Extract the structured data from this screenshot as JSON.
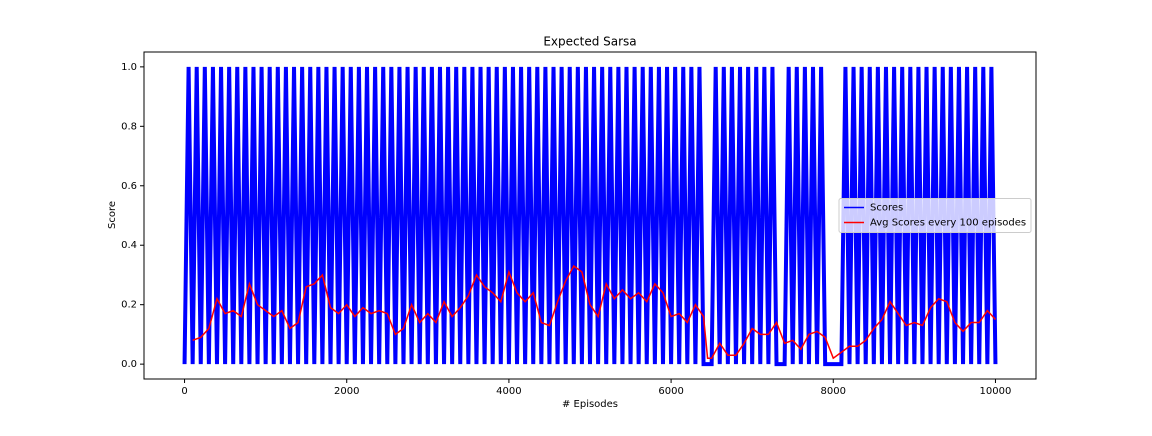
{
  "chart_data": {
    "type": "line",
    "title": "Expected Sarsa",
    "xlabel": "# Episodes",
    "ylabel": "Score",
    "xlim": [
      -500,
      10500
    ],
    "ylim": [
      -0.05,
      1.05
    ],
    "xticks": [
      0,
      2000,
      4000,
      6000,
      8000,
      10000
    ],
    "yticks": [
      {
        "value": 0,
        "label": "0.0"
      },
      0.2,
      0.4,
      0.6,
      0.8,
      {
        "value": 1,
        "label": "1.0"
      }
    ],
    "legend": "center right",
    "series": [
      {
        "name": "Scores",
        "color": "#0000ff",
        "x": [
          0,
          50,
          100,
          150,
          200,
          250,
          300,
          350,
          400,
          450,
          500,
          550,
          600,
          650,
          700,
          750,
          800,
          850,
          900,
          950,
          1000,
          1050,
          1100,
          1150,
          1200,
          1250,
          1300,
          1350,
          1400,
          1450,
          1500,
          1550,
          1600,
          1650,
          1700,
          1750,
          1800,
          1850,
          1900,
          1950,
          2000,
          2050,
          2100,
          2150,
          2200,
          2250,
          2300,
          2350,
          2400,
          2450,
          2500,
          2550,
          2600,
          2650,
          2700,
          2750,
          2800,
          2850,
          2900,
          2950,
          3000,
          3050,
          3100,
          3150,
          3200,
          3250,
          3300,
          3350,
          3400,
          3450,
          3500,
          3550,
          3600,
          3650,
          3700,
          3750,
          3800,
          3850,
          3900,
          3950,
          4000,
          4050,
          4100,
          4150,
          4200,
          4250,
          4300,
          4350,
          4400,
          4450,
          4500,
          4550,
          4600,
          4650,
          4700,
          4750,
          4800,
          4850,
          4900,
          4950,
          5000,
          5050,
          5100,
          5150,
          5200,
          5250,
          5300,
          5350,
          5400,
          5450,
          5500,
          5550,
          5600,
          5650,
          5700,
          5750,
          5800,
          5850,
          5900,
          5950,
          6000,
          6050,
          6100,
          6150,
          6200,
          6250,
          6300,
          6350,
          6400,
          6450,
          6500,
          6550,
          6600,
          6650,
          6700,
          6750,
          6800,
          6850,
          6900,
          6950,
          7000,
          7050,
          7100,
          7150,
          7200,
          7250,
          7300,
          7350,
          7400,
          7450,
          7500,
          7550,
          7600,
          7650,
          7700,
          7750,
          7800,
          7850,
          7900,
          7950,
          8000,
          8050,
          8100,
          8150,
          8200,
          8250,
          8300,
          8350,
          8400,
          8450,
          8500,
          8550,
          8600,
          8650,
          8700,
          8750,
          8800,
          8850,
          8900,
          8950,
          9000,
          9050,
          9100,
          9150,
          9200,
          9250,
          9300,
          9350,
          9400,
          9450,
          9500,
          9550,
          9600,
          9650,
          9700,
          9750,
          9800,
          9850,
          9900,
          9950,
          10000
        ],
        "values": [
          0,
          1,
          0,
          1,
          0,
          1,
          0,
          1,
          0,
          1,
          0,
          1,
          0,
          1,
          0,
          1,
          0,
          1,
          0,
          1,
          0,
          1,
          0,
          1,
          0,
          1,
          0,
          1,
          0,
          1,
          0,
          1,
          0,
          1,
          0,
          1,
          0,
          1,
          0,
          1,
          0,
          1,
          0,
          1,
          0,
          1,
          0,
          1,
          0,
          1,
          0,
          1,
          0,
          1,
          0,
          1,
          0,
          1,
          0,
          1,
          0,
          1,
          0,
          1,
          0,
          1,
          0,
          1,
          0,
          1,
          0,
          1,
          0,
          1,
          0,
          1,
          0,
          1,
          0,
          1,
          0,
          1,
          0,
          1,
          0,
          1,
          0,
          1,
          0,
          1,
          0,
          1,
          0,
          1,
          0,
          1,
          0,
          1,
          0,
          1,
          0,
          1,
          0,
          1,
          0,
          1,
          0,
          1,
          0,
          1,
          0,
          1,
          0,
          1,
          0,
          1,
          0,
          1,
          0,
          1,
          0,
          1,
          0,
          1,
          0,
          1,
          0,
          1,
          0,
          0,
          0,
          1,
          0,
          1,
          0,
          1,
          0,
          1,
          0,
          1,
          0,
          1,
          0,
          1,
          0,
          1,
          0,
          0,
          0,
          1,
          0,
          1,
          0,
          1,
          0,
          1,
          0,
          1,
          0,
          0,
          0,
          0,
          0,
          1,
          0,
          1,
          0,
          1,
          0,
          1,
          0,
          1,
          0,
          1,
          0,
          1,
          0,
          1,
          0,
          1,
          0,
          1,
          0,
          1,
          0,
          1,
          0,
          1,
          0,
          1,
          0,
          1,
          0,
          1,
          0,
          1,
          0,
          1,
          0,
          1,
          0
        ]
      },
      {
        "name": "Avg Scores every 100 episodes",
        "color": "#ff0000",
        "x": [
          100,
          200,
          300,
          400,
          500,
          600,
          700,
          800,
          900,
          1000,
          1100,
          1200,
          1300,
          1400,
          1500,
          1600,
          1700,
          1800,
          1900,
          2000,
          2100,
          2200,
          2300,
          2400,
          2500,
          2600,
          2700,
          2800,
          2900,
          3000,
          3100,
          3200,
          3300,
          3400,
          3500,
          3600,
          3700,
          3800,
          3900,
          4000,
          4100,
          4200,
          4300,
          4400,
          4500,
          4600,
          4700,
          4800,
          4900,
          5000,
          5100,
          5200,
          5300,
          5400,
          5500,
          5600,
          5700,
          5800,
          5900,
          6000,
          6100,
          6200,
          6300,
          6400,
          6450,
          6500,
          6600,
          6700,
          6800,
          6900,
          7000,
          7100,
          7200,
          7300,
          7400,
          7500,
          7600,
          7700,
          7800,
          7900,
          8000,
          8100,
          8200,
          8300,
          8400,
          8500,
          8600,
          8700,
          8800,
          8900,
          9000,
          9100,
          9200,
          9300,
          9400,
          9500,
          9600,
          9700,
          9800,
          9900,
          10000
        ],
        "values": [
          0.08,
          0.09,
          0.12,
          0.22,
          0.17,
          0.18,
          0.16,
          0.27,
          0.2,
          0.18,
          0.16,
          0.18,
          0.12,
          0.14,
          0.26,
          0.27,
          0.3,
          0.19,
          0.17,
          0.2,
          0.16,
          0.19,
          0.17,
          0.18,
          0.17,
          0.1,
          0.12,
          0.2,
          0.14,
          0.17,
          0.14,
          0.21,
          0.16,
          0.19,
          0.23,
          0.3,
          0.26,
          0.24,
          0.21,
          0.31,
          0.24,
          0.21,
          0.24,
          0.14,
          0.13,
          0.21,
          0.28,
          0.33,
          0.31,
          0.2,
          0.16,
          0.27,
          0.22,
          0.25,
          0.22,
          0.24,
          0.21,
          0.27,
          0.24,
          0.16,
          0.17,
          0.14,
          0.2,
          0.16,
          0.02,
          0.02,
          0.07,
          0.03,
          0.03,
          0.07,
          0.12,
          0.1,
          0.1,
          0.14,
          0.07,
          0.08,
          0.05,
          0.1,
          0.11,
          0.09,
          0.02,
          0.04,
          0.06,
          0.06,
          0.08,
          0.12,
          0.15,
          0.21,
          0.17,
          0.13,
          0.14,
          0.13,
          0.19,
          0.22,
          0.21,
          0.14,
          0.11,
          0.14,
          0.14,
          0.18,
          0.15
        ]
      }
    ]
  }
}
